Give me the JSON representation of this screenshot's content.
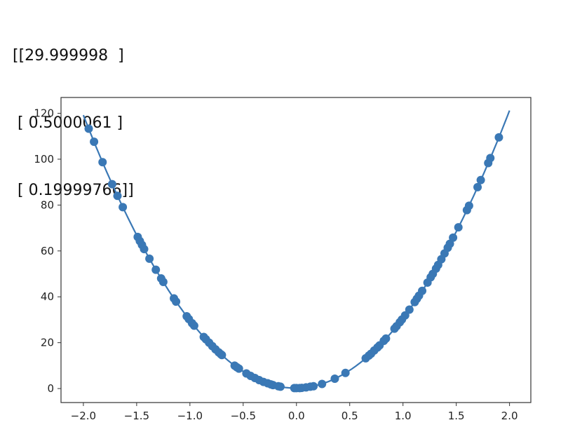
{
  "output_text": [
    "[[29.999998  ]",
    " [ 0.5000061 ]",
    " [ 0.19999766]]"
  ],
  "chart_data": {
    "type": "scatter",
    "title": "",
    "xlabel": "",
    "ylabel": "",
    "xlim": [
      -2.21,
      2.2
    ],
    "ylim": [
      -6.1,
      126.9
    ],
    "xticks": [
      -2.0,
      -1.5,
      -1.0,
      -0.5,
      0.0,
      0.5,
      1.0,
      1.5,
      2.0
    ],
    "xtick_labels": [
      "−2.0",
      "−1.5",
      "−1.0",
      "−0.5",
      "0.0",
      "0.5",
      "1.0",
      "1.5",
      "2.0"
    ],
    "yticks": [
      0,
      20,
      40,
      60,
      80,
      100,
      120
    ],
    "ytick_labels": [
      "0",
      "20",
      "40",
      "60",
      "80",
      "100",
      "120"
    ],
    "grid": false,
    "color": "#3a78b5",
    "line": {
      "type": "line",
      "x_range": [
        -2.0,
        2.0
      ],
      "coefficients": [
        29.999998,
        0.5000061,
        0.19999766
      ]
    },
    "points": {
      "x": [
        -1.95,
        -1.9,
        -1.82,
        -1.73,
        -1.68,
        -1.63,
        -1.49,
        -1.47,
        -1.45,
        -1.43,
        -1.38,
        -1.32,
        -1.27,
        -1.25,
        -1.15,
        -1.13,
        -1.03,
        -1.01,
        -0.98,
        -0.96,
        -0.87,
        -0.85,
        -0.82,
        -0.79,
        -0.76,
        -0.73,
        -0.71,
        -0.7,
        -0.58,
        -0.56,
        -0.54,
        -0.47,
        -0.43,
        -0.39,
        -0.35,
        -0.31,
        -0.27,
        -0.24,
        -0.22,
        -0.17,
        -0.15,
        -0.02,
        0.0,
        0.03,
        0.05,
        0.09,
        0.13,
        0.16,
        0.24,
        0.36,
        0.46,
        0.65,
        0.68,
        0.7,
        0.73,
        0.76,
        0.78,
        0.82,
        0.84,
        0.92,
        0.94,
        0.97,
        0.99,
        1.02,
        1.06,
        1.11,
        1.13,
        1.15,
        1.18,
        1.23,
        1.26,
        1.28,
        1.31,
        1.33,
        1.36,
        1.39,
        1.42,
        1.44,
        1.47,
        1.52,
        1.6,
        1.62,
        1.7,
        1.73,
        1.8,
        1.82,
        1.9
      ],
      "y": [
        113.3,
        107.6,
        98.7,
        89.1,
        84.0,
        79.1,
        66.1,
        64.3,
        62.6,
        60.8,
        56.6,
        51.8,
        48.0,
        46.5,
        39.3,
        37.9,
        31.5,
        30.3,
        28.5,
        27.4,
        22.5,
        21.5,
        20.0,
        18.5,
        17.1,
        15.8,
        15.0,
        14.6,
        10.0,
        9.3,
        8.7,
        6.6,
        5.5,
        4.6,
        3.7,
        2.9,
        2.3,
        1.8,
        1.5,
        1.0,
        0.8,
        0.2,
        0.2,
        0.2,
        0.3,
        0.5,
        0.8,
        1.0,
        2.0,
        4.3,
        6.8,
        13.2,
        14.4,
        15.2,
        16.6,
        17.9,
        18.8,
        20.8,
        21.8,
        26.1,
        27.2,
        28.9,
        30.1,
        31.9,
        34.4,
        37.7,
        39.1,
        40.5,
        42.6,
        46.2,
        48.5,
        50.0,
        52.3,
        53.9,
        56.4,
        58.9,
        61.4,
        63.1,
        65.8,
        70.3,
        77.8,
        79.7,
        87.8,
        90.9,
        98.3,
        100.5,
        109.5
      ]
    }
  }
}
